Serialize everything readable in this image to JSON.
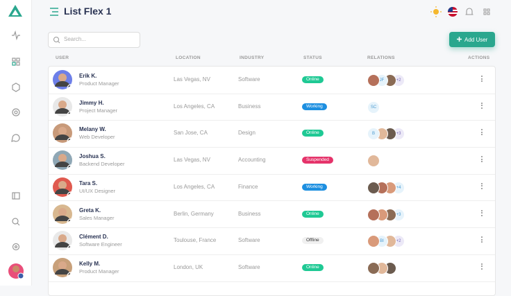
{
  "header": {
    "title": "List Flex 1"
  },
  "toolbar": {
    "search_placeholder": "Search...",
    "add_button": "Add User"
  },
  "table": {
    "columns": [
      "USER",
      "LOCATION",
      "INDUSTRY",
      "STATUS",
      "RELATIONS",
      "ACTIONS"
    ],
    "rows": [
      {
        "name": "Erik K.",
        "role": "Product Manager",
        "location": "Las Vegas, NV",
        "industry": "Software",
        "status": "Online",
        "relations": [
          "JF",
          "+2"
        ]
      },
      {
        "name": "Jimmy H.",
        "role": "Project Manager",
        "location": "Los Angeles, CA",
        "industry": "Business",
        "status": "Working",
        "relations": [
          "SC"
        ]
      },
      {
        "name": "Melany W.",
        "role": "Web Developer",
        "location": "San Jose, CA",
        "industry": "Design",
        "status": "Online",
        "relations": [
          "B",
          "+3"
        ]
      },
      {
        "name": "Joshua S.",
        "role": "Backend Developer",
        "location": "Las Vegas, NV",
        "industry": "Accounting",
        "status": "Suspended",
        "relations": []
      },
      {
        "name": "Tara S.",
        "role": "UI/UX Designer",
        "location": "Los Angeles, CA",
        "industry": "Finance",
        "status": "Working",
        "relations": [
          "+4"
        ]
      },
      {
        "name": "Greta K.",
        "role": "Sales Manager",
        "location": "Berlin, Germany",
        "industry": "Business",
        "status": "Online",
        "relations": [
          "+3"
        ]
      },
      {
        "name": "Clément D.",
        "role": "Software Engineer",
        "location": "Toulouse, France",
        "industry": "Software",
        "status": "Offline",
        "relations": [
          "BI",
          "+2"
        ]
      },
      {
        "name": "Kelly M.",
        "role": "Product Manager",
        "location": "London, UK",
        "industry": "Software",
        "status": "Online",
        "relations": []
      }
    ]
  }
}
